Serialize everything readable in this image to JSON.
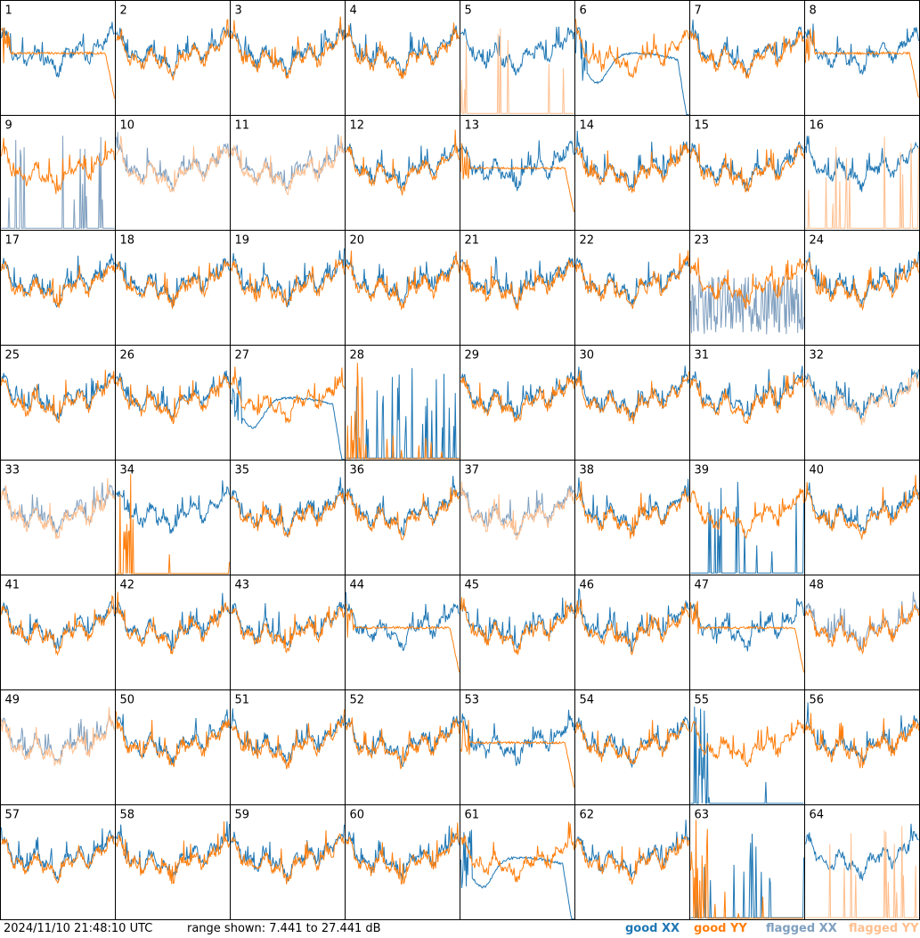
{
  "timestamp": "2024/11/10 21:48:10 UTC",
  "range_text": "range shown: 7.441 to 27.441 dB",
  "legend": {
    "good_xx": "good XX",
    "good_yy": "good YY",
    "flagged_xx": "flagged XX",
    "flagged_yy": "flagged YY"
  },
  "colors": {
    "good_xx": "#1f77b4",
    "good_yy": "#ff7f0e",
    "flagged_xx": "#7f9fbf",
    "flagged_yy": "#ffbf8f"
  },
  "chart_data": {
    "type": "line",
    "grid": "8x8",
    "ylim": [
      7.441,
      27.441
    ],
    "units": "dB",
    "panels": [
      {
        "id": "1",
        "xx": "good",
        "yy": "good",
        "shape": "edge_drop"
      },
      {
        "id": "2",
        "xx": "good",
        "yy": "good",
        "shape": "normal"
      },
      {
        "id": "3",
        "xx": "good",
        "yy": "good",
        "shape": "normal"
      },
      {
        "id": "4",
        "xx": "good",
        "yy": "good",
        "shape": "normal"
      },
      {
        "id": "5",
        "xx": "good",
        "yy": "flagged",
        "shape": "yy_spikes"
      },
      {
        "id": "6",
        "xx": "good",
        "yy": "good",
        "shape": "xx_dip"
      },
      {
        "id": "7",
        "xx": "good",
        "yy": "good",
        "shape": "normal"
      },
      {
        "id": "8",
        "xx": "good",
        "yy": "good",
        "shape": "edge_drop"
      },
      {
        "id": "9",
        "xx": "flagged",
        "yy": "good",
        "shape": "xx_spikes"
      },
      {
        "id": "10",
        "xx": "flagged",
        "yy": "flagged",
        "shape": "normal"
      },
      {
        "id": "11",
        "xx": "flagged",
        "yy": "flagged",
        "shape": "normal"
      },
      {
        "id": "12",
        "xx": "good",
        "yy": "good",
        "shape": "normal"
      },
      {
        "id": "13",
        "xx": "good",
        "yy": "good",
        "shape": "edge_drop"
      },
      {
        "id": "14",
        "xx": "good",
        "yy": "good",
        "shape": "normal"
      },
      {
        "id": "15",
        "xx": "good",
        "yy": "good",
        "shape": "normal"
      },
      {
        "id": "16",
        "xx": "good",
        "yy": "flagged",
        "shape": "yy_spikes"
      },
      {
        "id": "17",
        "xx": "good",
        "yy": "good",
        "shape": "normal"
      },
      {
        "id": "18",
        "xx": "good",
        "yy": "good",
        "shape": "normal"
      },
      {
        "id": "19",
        "xx": "good",
        "yy": "good",
        "shape": "normal"
      },
      {
        "id": "20",
        "xx": "good",
        "yy": "good",
        "shape": "normal"
      },
      {
        "id": "21",
        "xx": "good",
        "yy": "good",
        "shape": "normal"
      },
      {
        "id": "22",
        "xx": "good",
        "yy": "good",
        "shape": "normal"
      },
      {
        "id": "23",
        "xx": "flagged",
        "yy": "good",
        "shape": "xx_noisy"
      },
      {
        "id": "24",
        "xx": "good",
        "yy": "good",
        "shape": "normal"
      },
      {
        "id": "25",
        "xx": "good",
        "yy": "good",
        "shape": "normal"
      },
      {
        "id": "26",
        "xx": "good",
        "yy": "good",
        "shape": "normal"
      },
      {
        "id": "27",
        "xx": "good",
        "yy": "good",
        "shape": "xx_dip"
      },
      {
        "id": "28",
        "xx": "good",
        "yy": "good",
        "shape": "dead"
      },
      {
        "id": "29",
        "xx": "good",
        "yy": "good",
        "shape": "normal"
      },
      {
        "id": "30",
        "xx": "good",
        "yy": "good",
        "shape": "normal"
      },
      {
        "id": "31",
        "xx": "good",
        "yy": "good",
        "shape": "normal"
      },
      {
        "id": "32",
        "xx": "good",
        "yy": "flagged",
        "shape": "normal"
      },
      {
        "id": "33",
        "xx": "flagged",
        "yy": "flagged",
        "shape": "normal"
      },
      {
        "id": "34",
        "xx": "good",
        "yy": "good",
        "shape": "yy_dead"
      },
      {
        "id": "35",
        "xx": "good",
        "yy": "good",
        "shape": "normal"
      },
      {
        "id": "36",
        "xx": "good",
        "yy": "good",
        "shape": "normal"
      },
      {
        "id": "37",
        "xx": "flagged",
        "yy": "flagged",
        "shape": "normal"
      },
      {
        "id": "38",
        "xx": "good",
        "yy": "good",
        "shape": "normal"
      },
      {
        "id": "39",
        "xx": "good",
        "yy": "good",
        "shape": "xx_spikes"
      },
      {
        "id": "40",
        "xx": "good",
        "yy": "good",
        "shape": "normal"
      },
      {
        "id": "41",
        "xx": "good",
        "yy": "good",
        "shape": "normal"
      },
      {
        "id": "42",
        "xx": "good",
        "yy": "good",
        "shape": "normal"
      },
      {
        "id": "43",
        "xx": "good",
        "yy": "good",
        "shape": "normal"
      },
      {
        "id": "44",
        "xx": "good",
        "yy": "good",
        "shape": "edge_drop"
      },
      {
        "id": "45",
        "xx": "good",
        "yy": "good",
        "shape": "normal"
      },
      {
        "id": "46",
        "xx": "good",
        "yy": "good",
        "shape": "normal"
      },
      {
        "id": "47",
        "xx": "good",
        "yy": "good",
        "shape": "edge_drop"
      },
      {
        "id": "48",
        "xx": "flagged",
        "yy": "good",
        "shape": "normal"
      },
      {
        "id": "49",
        "xx": "flagged",
        "yy": "flagged",
        "shape": "normal"
      },
      {
        "id": "50",
        "xx": "good",
        "yy": "good",
        "shape": "normal"
      },
      {
        "id": "51",
        "xx": "good",
        "yy": "good",
        "shape": "normal"
      },
      {
        "id": "52",
        "xx": "good",
        "yy": "good",
        "shape": "normal"
      },
      {
        "id": "53",
        "xx": "good",
        "yy": "good",
        "shape": "edge_drop"
      },
      {
        "id": "54",
        "xx": "good",
        "yy": "good",
        "shape": "normal"
      },
      {
        "id": "55",
        "xx": "good",
        "yy": "good",
        "shape": "xx_dead"
      },
      {
        "id": "56",
        "xx": "good",
        "yy": "good",
        "shape": "normal"
      },
      {
        "id": "57",
        "xx": "good",
        "yy": "good",
        "shape": "normal"
      },
      {
        "id": "58",
        "xx": "good",
        "yy": "good",
        "shape": "normal"
      },
      {
        "id": "59",
        "xx": "good",
        "yy": "good",
        "shape": "normal"
      },
      {
        "id": "60",
        "xx": "good",
        "yy": "good",
        "shape": "normal"
      },
      {
        "id": "61",
        "xx": "good",
        "yy": "good",
        "shape": "xx_dip"
      },
      {
        "id": "62",
        "xx": "good",
        "yy": "good",
        "shape": "normal"
      },
      {
        "id": "63",
        "xx": "good",
        "yy": "good",
        "shape": "dead"
      },
      {
        "id": "64",
        "xx": "good",
        "yy": "flagged",
        "shape": "yy_spikes"
      }
    ]
  }
}
